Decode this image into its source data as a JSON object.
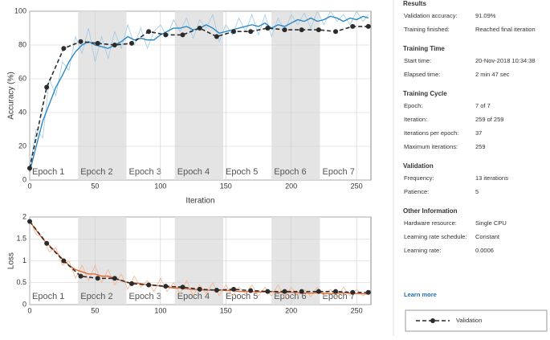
{
  "chart_data": [
    {
      "type": "line",
      "ylabel": "Accuracy (%)",
      "xlabel": "Iteration",
      "xlim": [
        0,
        261
      ],
      "xticks": [
        0,
        50,
        100,
        150,
        200,
        250
      ],
      "ylim": [
        0,
        100
      ],
      "yticks": [
        0,
        20,
        40,
        60,
        80,
        100
      ],
      "grid": true,
      "epochs": [
        "Epoch 1",
        "Epoch 2",
        "Epoch 3",
        "Epoch 4",
        "Epoch 5",
        "Epoch 6",
        "Epoch 7"
      ],
      "x": [
        0,
        5,
        10,
        15,
        20,
        25,
        30,
        35,
        40,
        45,
        50,
        55,
        60,
        65,
        70,
        75,
        80,
        85,
        90,
        95,
        100,
        105,
        110,
        115,
        120,
        125,
        130,
        135,
        140,
        145,
        150,
        155,
        160,
        165,
        170,
        175,
        180,
        185,
        190,
        195,
        200,
        205,
        210,
        215,
        220,
        225,
        230,
        235,
        240,
        245,
        250,
        255,
        259
      ],
      "series": [
        {
          "color": "#9fcbe6",
          "values": [
            8,
            30,
            25,
            60,
            50,
            70,
            65,
            85,
            75,
            90,
            70,
            85,
            72,
            88,
            78,
            92,
            80,
            90,
            78,
            88,
            92,
            85,
            95,
            88,
            96,
            84,
            95,
            90,
            98,
            82,
            92,
            86,
            96,
            88,
            98,
            86,
            98,
            85,
            96,
            88,
            98,
            92,
            99,
            90,
            100,
            92,
            100,
            94,
            98,
            92,
            100,
            94,
            98
          ]
        },
        {
          "color": "#1f83c4",
          "values": [
            5,
            20,
            35,
            45,
            55,
            62,
            70,
            76,
            80,
            82,
            80,
            79,
            78,
            80,
            82,
            85,
            83,
            84,
            83,
            83,
            86,
            88,
            90,
            90,
            91,
            89,
            90,
            92,
            90,
            87,
            88,
            89,
            90,
            91,
            92,
            91,
            93,
            90,
            92,
            91,
            93,
            95,
            94,
            96,
            94,
            95,
            97,
            96,
            94,
            96,
            95,
            97,
            96
          ]
        },
        {
          "name": "Validation",
          "color": "#2b2b2b",
          "dashed": true,
          "x": [
            0,
            13,
            26,
            39,
            52,
            65,
            78,
            91,
            104,
            117,
            130,
            143,
            156,
            169,
            182,
            195,
            208,
            221,
            234,
            247,
            259
          ],
          "values": [
            7,
            55,
            78,
            82,
            81,
            80,
            81,
            88,
            86,
            86,
            90,
            85,
            88,
            88,
            90,
            89,
            89,
            89,
            88,
            91,
            91
          ]
        }
      ]
    },
    {
      "type": "line",
      "ylabel": "Loss",
      "xlim": [
        0,
        261
      ],
      "xticks": [
        0,
        50,
        100,
        150,
        200,
        250
      ],
      "ylim": [
        0,
        2
      ],
      "yticks": [
        0,
        0.5,
        1,
        1.5,
        2
      ],
      "grid": true,
      "epochs": [
        "Epoch 1",
        "Epoch 2",
        "Epoch 3",
        "Epoch 4",
        "Epoch 5",
        "Epoch 6",
        "Epoch 7"
      ],
      "x": [
        0,
        5,
        10,
        15,
        20,
        25,
        30,
        35,
        40,
        45,
        50,
        55,
        60,
        65,
        70,
        75,
        80,
        85,
        90,
        95,
        100,
        105,
        110,
        115,
        120,
        125,
        130,
        135,
        140,
        145,
        150,
        155,
        160,
        165,
        170,
        175,
        180,
        185,
        190,
        195,
        200,
        205,
        210,
        215,
        220,
        225,
        230,
        235,
        240,
        245,
        250,
        255,
        259
      ],
      "series": [
        {
          "color": "#f2b48e",
          "values": [
            1.95,
            1.6,
            1.55,
            1.2,
            1.3,
            0.9,
            1.0,
            0.6,
            0.9,
            0.55,
            0.9,
            0.5,
            0.8,
            0.45,
            0.7,
            0.35,
            0.65,
            0.4,
            0.55,
            0.3,
            0.6,
            0.3,
            0.5,
            0.25,
            0.55,
            0.2,
            0.45,
            0.25,
            0.5,
            0.2,
            0.45,
            0.2,
            0.4,
            0.25,
            0.45,
            0.2,
            0.4,
            0.2,
            0.45,
            0.15,
            0.4,
            0.2,
            0.35,
            0.18,
            0.4,
            0.2,
            0.35,
            0.15,
            0.4,
            0.2,
            0.35,
            0.2,
            0.3
          ]
        },
        {
          "color": "#e0642a",
          "values": [
            1.9,
            1.7,
            1.5,
            1.35,
            1.2,
            1.05,
            0.9,
            0.8,
            0.75,
            0.7,
            0.7,
            0.65,
            0.65,
            0.6,
            0.55,
            0.5,
            0.5,
            0.48,
            0.45,
            0.45,
            0.42,
            0.4,
            0.38,
            0.38,
            0.36,
            0.35,
            0.34,
            0.33,
            0.33,
            0.34,
            0.32,
            0.32,
            0.3,
            0.3,
            0.3,
            0.29,
            0.29,
            0.3,
            0.28,
            0.28,
            0.28,
            0.27,
            0.27,
            0.26,
            0.27,
            0.26,
            0.25,
            0.26,
            0.27,
            0.26,
            0.25,
            0.25,
            0.24
          ]
        },
        {
          "color": "#2b2b2b",
          "dashed": true,
          "x": [
            0,
            13,
            26,
            39,
            52,
            65,
            78,
            91,
            104,
            117,
            130,
            143,
            156,
            169,
            182,
            195,
            208,
            221,
            234,
            247,
            259
          ],
          "values": [
            1.9,
            1.4,
            1.0,
            0.65,
            0.6,
            0.6,
            0.48,
            0.45,
            0.42,
            0.4,
            0.35,
            0.33,
            0.35,
            0.32,
            0.3,
            0.3,
            0.3,
            0.3,
            0.3,
            0.28,
            0.28
          ]
        }
      ]
    }
  ],
  "panel": {
    "sections": [
      {
        "title": "Results",
        "rows": [
          [
            "Validation accuracy:",
            "91.09%"
          ],
          [
            "Training finished:",
            "Reached final iteration"
          ]
        ]
      },
      {
        "title": "Training Time",
        "rows": [
          [
            "Start time:",
            "20-Nov-2018 10:34:38"
          ],
          [
            "Elapsed time:",
            "2 min 47 sec"
          ]
        ]
      },
      {
        "title": "Training Cycle",
        "rows": [
          [
            "Epoch:",
            "7 of 7"
          ],
          [
            "Iteration:",
            "259 of 259"
          ],
          [
            "Iterations per epoch:",
            "37"
          ],
          [
            "Maximum iterations:",
            "259"
          ]
        ]
      },
      {
        "title": "Validation",
        "rows": [
          [
            "Frequency:",
            "13 iterations"
          ],
          [
            "Patience:",
            "5"
          ]
        ]
      },
      {
        "title": "Other Information",
        "rows": [
          [
            "Hardware resource:",
            "Single CPU"
          ],
          [
            "Learning rate schedule:",
            "Constant"
          ],
          [
            "Learning rate:",
            "0.0006"
          ]
        ]
      }
    ],
    "learn_more": "Learn more"
  }
}
